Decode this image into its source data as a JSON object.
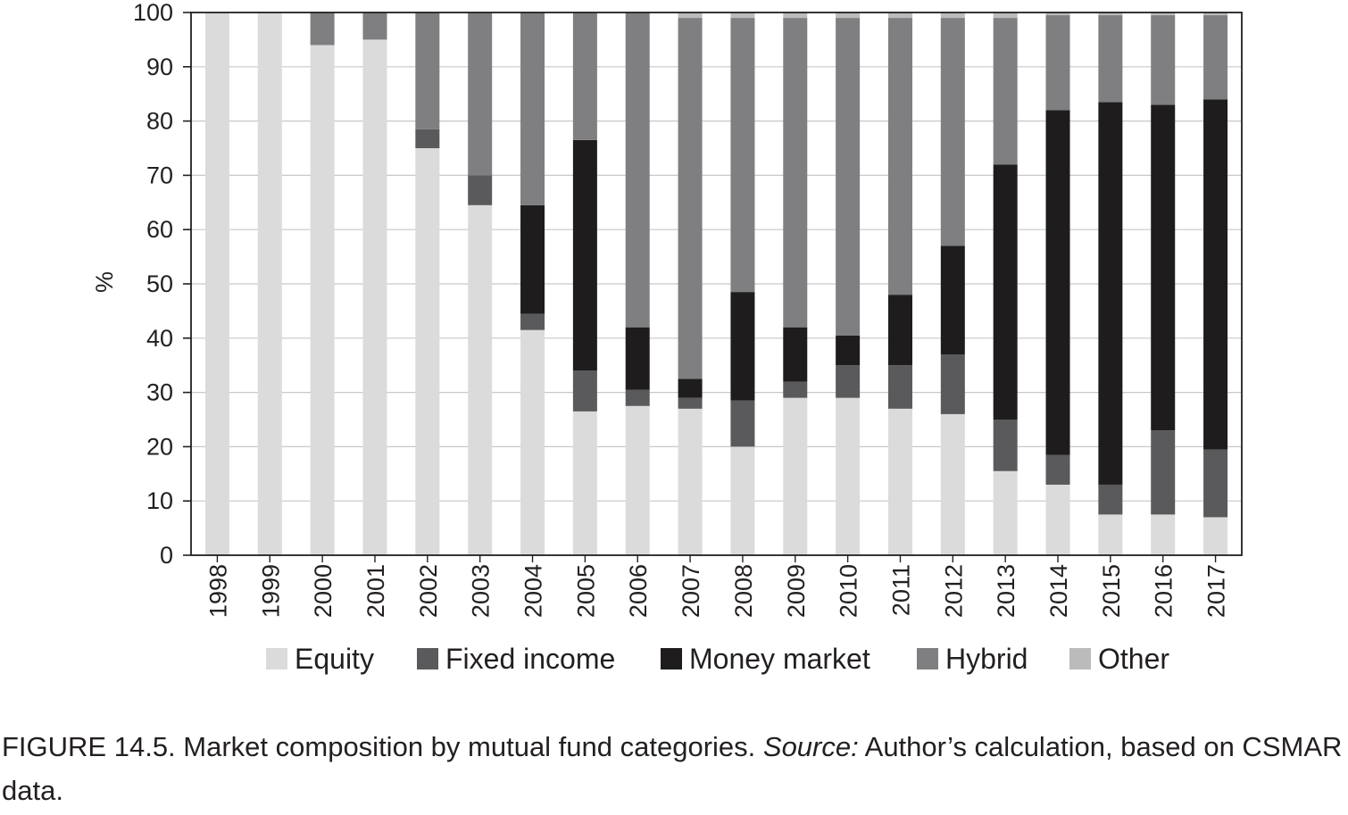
{
  "chart_data": {
    "type": "bar",
    "stacked": true,
    "ylabel": "%",
    "xlabel": "",
    "ylim": [
      0,
      100
    ],
    "yticks": [
      0,
      10,
      20,
      30,
      40,
      50,
      60,
      70,
      80,
      90,
      100
    ],
    "grid": true,
    "legend_position": "bottom",
    "categories": [
      "1998",
      "1999",
      "2000",
      "2001",
      "2002",
      "2003",
      "2004",
      "2005",
      "2006",
      "2007",
      "2008",
      "2009",
      "2010",
      "2011",
      "2012",
      "2013",
      "2014",
      "2015",
      "2016",
      "2017"
    ],
    "series": [
      {
        "name": "Equity",
        "color": "#dcdbdc",
        "values": [
          100,
          100,
          94,
          95,
          75,
          64.5,
          41.5,
          26.5,
          27.5,
          27,
          20,
          29,
          29,
          27,
          26,
          15.5,
          13,
          7.5,
          7.5,
          7
        ]
      },
      {
        "name": "Fixed income",
        "color": "#5a595b",
        "values": [
          0,
          0,
          0,
          0,
          3.5,
          5.5,
          3,
          7.5,
          3,
          2,
          8.5,
          3,
          6,
          8,
          11,
          9.5,
          5.5,
          5.5,
          15.5,
          12.5
        ]
      },
      {
        "name": "Money market",
        "color": "#1e1c1d",
        "values": [
          0,
          0,
          0,
          0,
          0,
          0,
          20,
          42.5,
          11.5,
          3.5,
          20,
          10,
          5.5,
          13,
          20,
          47,
          63.5,
          70.5,
          60,
          64.5
        ]
      },
      {
        "name": "Hybrid",
        "color": "#7f7e80",
        "values": [
          0,
          0,
          6,
          5,
          21.5,
          30,
          35.5,
          23.5,
          58,
          66.5,
          50.5,
          57,
          58.5,
          51,
          42,
          27,
          17.5,
          16,
          16.5,
          15.5
        ]
      },
      {
        "name": "Other",
        "color": "#bcbbbc",
        "values": [
          0,
          0,
          0,
          0,
          0,
          0,
          0,
          0,
          0,
          1,
          1,
          1,
          1,
          1,
          1,
          1,
          0.5,
          0.5,
          0.5,
          0.5
        ]
      }
    ]
  },
  "caption": {
    "prefix": "FIGURE 14.5. Market composition by mutual fund categories. ",
    "source_label": "Source:",
    "suffix": " Author’s calculation, based on CSMAR data."
  }
}
